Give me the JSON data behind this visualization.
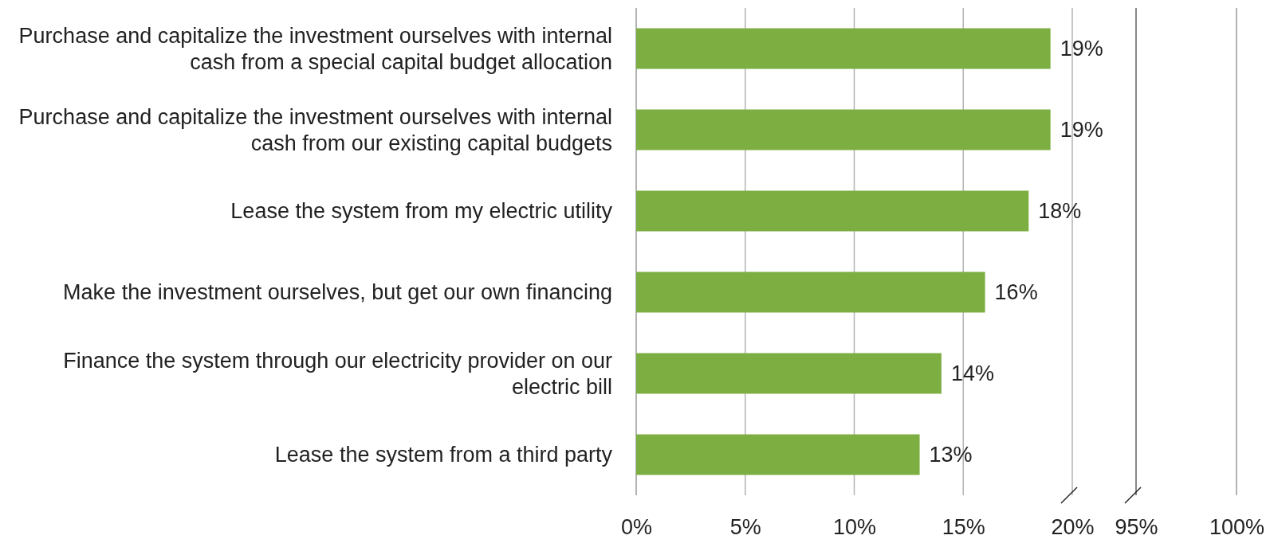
{
  "chart_data": [
    {
      "type": "bar",
      "orientation": "horizontal",
      "categories": [
        "Purchase and capitalize the investment ourselves with internal cash from a special capital budget allocation",
        "Purchase and capitalize the investment ourselves with internal cash from our existing capital budgets",
        "Lease the system from my electric utility",
        "Make the investment ourselves, but get our own financing",
        "Finance the system through our electricity provider on our electric bill",
        "Lease the system from a third party"
      ],
      "values": [
        19,
        19,
        18,
        16,
        14,
        13
      ],
      "value_labels": [
        "19%",
        "19%",
        "18%",
        "16%",
        "14%",
        "13%"
      ],
      "color": "#7cae42",
      "xlim": [
        0,
        20
      ],
      "xticks": [
        {
          "value": 0,
          "label": "0%"
        },
        {
          "value": 5,
          "label": "5%"
        },
        {
          "value": 10,
          "label": "10%"
        },
        {
          "value": 15,
          "label": "15%"
        },
        {
          "value": 20,
          "label": "20%"
        }
      ],
      "grid": "x"
    },
    {
      "type": "other",
      "annotations": [
        "95%",
        "100%"
      ]
    }
  ]
}
